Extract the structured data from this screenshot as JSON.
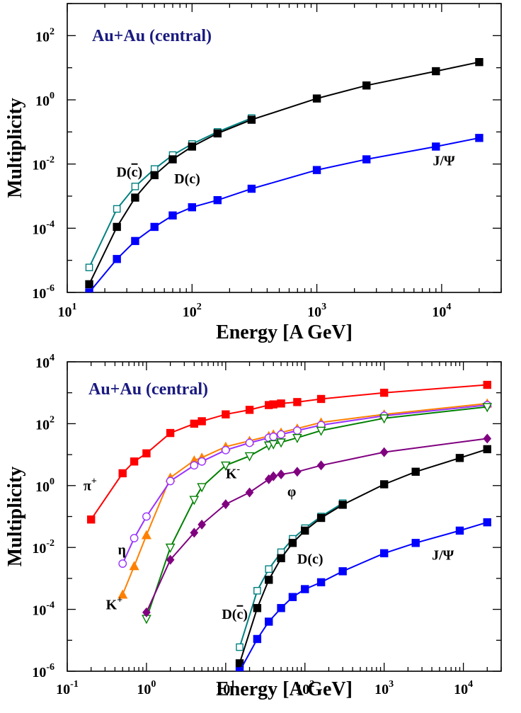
{
  "chart_data": [
    {
      "id": "top",
      "type": "line",
      "title": "Au+Au (central)",
      "xlabel": "Energy [A GeV]",
      "ylabel": "Multiplicity",
      "xscale": "log",
      "yscale": "log",
      "xlim": [
        10,
        30000
      ],
      "ylim": [
        1e-06,
        1000
      ],
      "xticks": [
        {
          "base": "10",
          "exp": "1",
          "value": 10
        },
        {
          "base": "10",
          "exp": "2",
          "value": 100
        },
        {
          "base": "10",
          "exp": "3",
          "value": 1000
        },
        {
          "base": "10",
          "exp": "4",
          "value": 10000
        }
      ],
      "yticks": [
        {
          "base": "10",
          "exp": "-6",
          "value": 1e-06
        },
        {
          "base": "10",
          "exp": "-4",
          "value": 0.0001
        },
        {
          "base": "10",
          "exp": "-2",
          "value": 0.01
        },
        {
          "base": "10",
          "exp": "0",
          "value": 1
        },
        {
          "base": "10",
          "exp": "2",
          "value": 100
        }
      ],
      "series": [
        {
          "name": "D(c̄)",
          "color": "#008080",
          "marker": "square-open",
          "x": [
            15,
            25,
            35,
            50,
            70,
            100,
            160,
            300
          ],
          "y": [
            6e-06,
            0.0004,
            0.002,
            0.007,
            0.019,
            0.042,
            0.1,
            0.27
          ]
        },
        {
          "name": "D(c)",
          "color": "#000000",
          "marker": "square",
          "x": [
            15,
            25,
            35,
            50,
            70,
            100,
            160,
            300,
            1000,
            2500,
            9000,
            20000
          ],
          "y": [
            1.8e-06,
            0.00011,
            0.0009,
            0.0045,
            0.014,
            0.035,
            0.09,
            0.24,
            1.1,
            2.8,
            7.8,
            15
          ]
        },
        {
          "name": "J/Ψ",
          "color": "#0000ff",
          "marker": "square",
          "x": [
            15,
            25,
            35,
            50,
            70,
            100,
            160,
            300,
            1000,
            2500,
            9000,
            20000
          ],
          "y": [
            1e-06,
            1.1e-05,
            4e-05,
            0.00011,
            0.00025,
            0.00045,
            0.00075,
            0.0017,
            0.0065,
            0.014,
            0.035,
            0.065
          ]
        }
      ],
      "annotations": [
        {
          "text": "D(c̄)",
          "main": "D(",
          "over": "c",
          "tail": ")",
          "x": 40,
          "y": 0.004,
          "anchor": "end"
        },
        {
          "text": "D(c)",
          "x": 72,
          "y": 0.0025,
          "anchor": "start"
        },
        {
          "text": "J/Ψ",
          "x": 8500,
          "y": 0.009,
          "anchor": "start"
        }
      ]
    },
    {
      "id": "bottom",
      "type": "line",
      "title": "Au+Au (central)",
      "xlabel": "Energy [A GeV]",
      "ylabel": "Multiplicity",
      "xscale": "log",
      "yscale": "log",
      "xlim": [
        0.1,
        30000
      ],
      "ylim": [
        1e-06,
        10000
      ],
      "xticks": [
        {
          "base": "10",
          "exp": "-1",
          "value": 0.1
        },
        {
          "base": "10",
          "exp": "0",
          "value": 1
        },
        {
          "base": "10",
          "exp": "1",
          "value": 10
        },
        {
          "base": "10",
          "exp": "2",
          "value": 100
        },
        {
          "base": "10",
          "exp": "3",
          "value": 1000
        },
        {
          "base": "10",
          "exp": "4",
          "value": 10000
        }
      ],
      "yticks": [
        {
          "base": "10",
          "exp": "-6",
          "value": 1e-06
        },
        {
          "base": "10",
          "exp": "-4",
          "value": 0.0001
        },
        {
          "base": "10",
          "exp": "-2",
          "value": 0.01
        },
        {
          "base": "10",
          "exp": "0",
          "value": 1
        },
        {
          "base": "10",
          "exp": "2",
          "value": 100
        },
        {
          "base": "10",
          "exp": "4",
          "value": 10000
        }
      ],
      "series": [
        {
          "name": "π+",
          "color": "#ff0000",
          "marker": "square",
          "x": [
            0.2,
            0.5,
            0.7,
            1,
            2,
            4,
            5,
            10,
            20,
            35,
            40,
            50,
            80,
            160,
            1000,
            20000
          ],
          "y": [
            0.08,
            2.5,
            6,
            11,
            50,
            100,
            120,
            200,
            280,
            400,
            420,
            450,
            500,
            630,
            1000,
            1800
          ]
        },
        {
          "name": "K+",
          "color": "#ff8000",
          "marker": "triangle",
          "x": [
            0.5,
            0.7,
            1,
            2,
            4,
            5,
            10,
            20,
            35,
            40,
            50,
            80,
            160,
            1000,
            20000
          ],
          "y": [
            0.0003,
            0.0025,
            0.025,
            1.8,
            6.5,
            8,
            18,
            28,
            40,
            45,
            52,
            70,
            110,
            200,
            450
          ]
        },
        {
          "name": "η",
          "color": "#9933ff",
          "marker": "circle-open",
          "x": [
            0.5,
            0.7,
            1,
            2,
            4,
            5,
            10,
            20,
            35,
            40,
            50,
            80,
            160,
            1000,
            20000
          ],
          "y": [
            0.003,
            0.02,
            0.1,
            1.4,
            4.5,
            6,
            14,
            24,
            35,
            38,
            45,
            60,
            90,
            180,
            400
          ]
        },
        {
          "name": "K-",
          "color": "#008000",
          "marker": "triangle-down-open",
          "x": [
            1,
            2,
            4,
            5,
            10,
            20,
            35,
            40,
            50,
            80,
            160,
            1000,
            20000
          ],
          "y": [
            5e-05,
            0.01,
            0.35,
            0.9,
            4.5,
            9,
            20,
            22,
            25,
            35,
            60,
            150,
            350
          ]
        },
        {
          "name": "φ",
          "color": "#800080",
          "marker": "diamond",
          "x": [
            1,
            2,
            4,
            5,
            10,
            20,
            35,
            40,
            50,
            80,
            160,
            1000,
            20000
          ],
          "y": [
            8e-05,
            0.004,
            0.03,
            0.055,
            0.25,
            0.6,
            1.6,
            2,
            2.3,
            2.8,
            4.5,
            12,
            33
          ]
        },
        {
          "name": "D(c̄)",
          "color": "#008080",
          "marker": "square-open",
          "x": [
            15,
            25,
            35,
            50,
            70,
            100,
            160,
            300
          ],
          "y": [
            6e-06,
            0.0004,
            0.002,
            0.007,
            0.019,
            0.042,
            0.1,
            0.27
          ]
        },
        {
          "name": "D(c)",
          "color": "#000000",
          "marker": "square",
          "x": [
            15,
            25,
            35,
            50,
            70,
            100,
            160,
            300,
            1000,
            2500,
            9000,
            20000
          ],
          "y": [
            1.8e-06,
            0.00011,
            0.0009,
            0.0045,
            0.014,
            0.035,
            0.09,
            0.24,
            1.1,
            2.8,
            7.8,
            15
          ]
        },
        {
          "name": "J/Ψ",
          "color": "#0000ff",
          "marker": "square",
          "x": [
            15,
            25,
            35,
            50,
            70,
            100,
            160,
            300,
            1000,
            2500,
            9000,
            20000
          ],
          "y": [
            1e-06,
            1.1e-05,
            4e-05,
            0.00011,
            0.00025,
            0.00045,
            0.00075,
            0.0017,
            0.0065,
            0.014,
            0.035,
            0.065
          ]
        }
      ],
      "annotations": [
        {
          "text": "π+",
          "main": "π",
          "sup": "+",
          "x": 0.16,
          "y": 0.7,
          "anchor": "start"
        },
        {
          "text": "η",
          "x": 0.55,
          "y": 0.006,
          "anchor": "end"
        },
        {
          "text": "K+",
          "main": "K",
          "sup": "+",
          "x": 0.5,
          "y": 0.0001,
          "anchor": "end"
        },
        {
          "text": "K-",
          "main": "K",
          "sup": "-",
          "x": 10,
          "y": 1.7,
          "anchor": "start"
        },
        {
          "text": "φ",
          "x": 60,
          "y": 0.45,
          "anchor": "start"
        },
        {
          "text": "D(c)",
          "x": 80,
          "y": 0.003,
          "anchor": "start"
        },
        {
          "text": "D(c̄)",
          "main": "D(",
          "over": "c",
          "tail": ")",
          "x": 19,
          "y": 5e-05,
          "anchor": "end"
        },
        {
          "text": "J/Ψ",
          "x": 4000,
          "y": 0.004,
          "anchor": "start"
        }
      ]
    }
  ]
}
